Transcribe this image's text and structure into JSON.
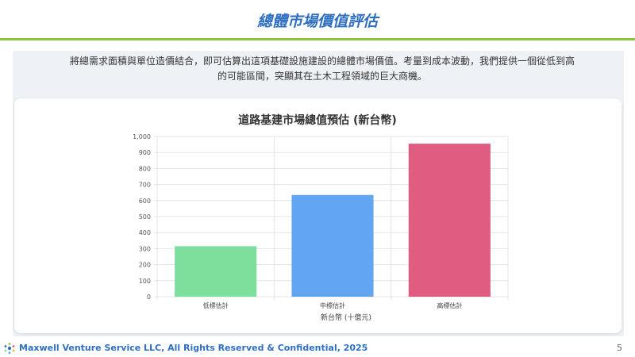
{
  "slide": {
    "title": "總體市場價值評估",
    "intro": "將總需求面積與單位造價結合，即可估算出這項基礎設施建設的總體市場價值。考量到成本波動，我們提供一個從低到高的可能區間，突顯其在土木工程領域的巨大商機。",
    "footer": "Maxwell Venture Service LLC, All Rights Reserved & Confidential, 2025",
    "page_number": "5"
  },
  "colors": {
    "title": "#2f6fc0",
    "rule": "#8cc43e",
    "bar_low": "#7ddf9b",
    "bar_mid": "#62a6f2",
    "bar_high": "#e05c80"
  },
  "chart_data": {
    "type": "bar",
    "title": "道路基建市場總值預估 (新台幣)",
    "categories": [
      "低標估計",
      "中標估計",
      "高標估計"
    ],
    "values": [
      315,
      635,
      955
    ],
    "xlabel": "新台幣 (十億元)",
    "ylabel": "",
    "ylim": [
      0,
      1000
    ],
    "yticks": [
      "0",
      "100",
      "200",
      "300",
      "400",
      "500",
      "600",
      "700",
      "800",
      "900",
      "1,000"
    ],
    "grid": true,
    "legend": "none"
  }
}
